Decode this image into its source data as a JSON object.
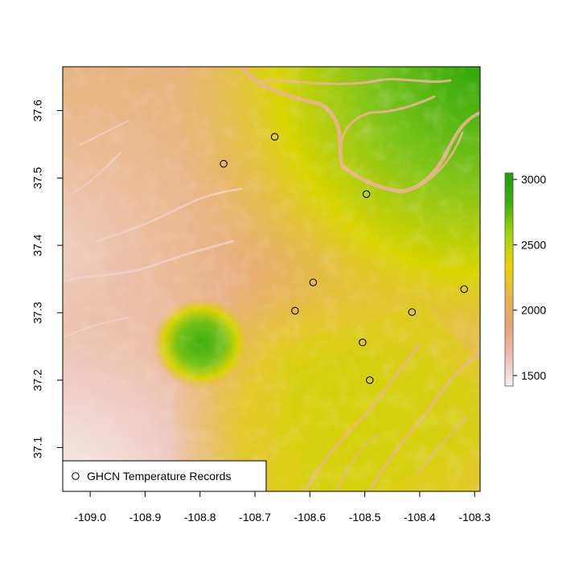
{
  "map": {
    "x_ticks": [
      "-109.0",
      "-108.9",
      "-108.8",
      "-108.7",
      "-108.6",
      "-108.5",
      "-108.4",
      "-108.3"
    ],
    "x_tick_values": [
      -109.0,
      -108.9,
      -108.8,
      -108.7,
      -108.6,
      -108.5,
      -108.4,
      -108.3
    ],
    "y_ticks": [
      "37.1",
      "37.2",
      "37.3",
      "37.4",
      "37.5",
      "37.6"
    ],
    "y_tick_values": [
      37.1,
      37.2,
      37.3,
      37.4,
      37.5,
      37.6
    ],
    "xlim": [
      -109.05,
      -108.29
    ],
    "ylim": [
      37.035,
      37.665
    ],
    "stations": [
      {
        "lon": -108.757,
        "lat": 37.521
      },
      {
        "lon": -108.664,
        "lat": 37.561
      },
      {
        "lon": -108.497,
        "lat": 37.476
      },
      {
        "lon": -108.594,
        "lat": 37.345
      },
      {
        "lon": -108.627,
        "lat": 37.303
      },
      {
        "lon": -108.414,
        "lat": 37.301
      },
      {
        "lon": -108.319,
        "lat": 37.335
      },
      {
        "lon": -108.504,
        "lat": 37.256
      },
      {
        "lon": -108.491,
        "lat": 37.2
      }
    ],
    "legend": {
      "label": "GHCN Temperature Records"
    },
    "colorbar": {
      "ticks": [
        "1500",
        "2000",
        "2500",
        "3000"
      ],
      "tick_values": [
        1500,
        2000,
        2500,
        3000
      ],
      "range": [
        1420,
        3050
      ],
      "colors": [
        "#f2f2f2",
        "#edbcae",
        "#e7a373",
        "#e8b64a",
        "#e8d300",
        "#a3d40e",
        "#3eb00a",
        "#1f9c0a"
      ]
    }
  }
}
